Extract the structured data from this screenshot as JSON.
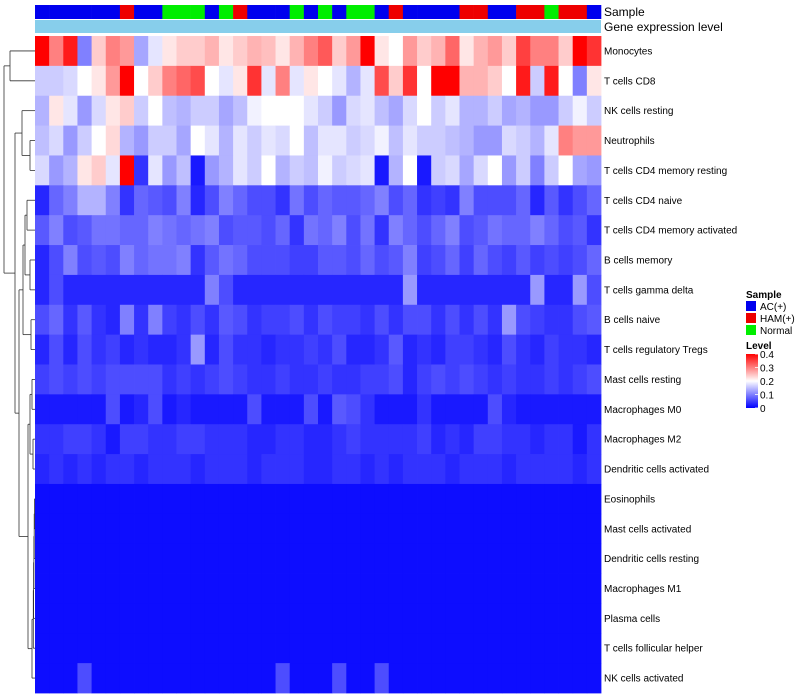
{
  "chart_data": {
    "type": "heatmap",
    "annotation_labels": [
      "Sample",
      "Gene expression level"
    ],
    "rows": [
      "Monocytes",
      "T cells CD8",
      "NK cells resting",
      "Neutrophils",
      "T cells CD4 memory resting",
      "T cells CD4 naive",
      "T cells CD4 memory activated",
      "B cells memory",
      "T cells gamma delta",
      "B cells naive",
      "T cells regulatory  Tregs",
      "Mast cells resting",
      "Macrophages M0",
      "Macrophages M2",
      "Dendritic cells activated",
      "Eosinophils",
      "Mast cells activated",
      "Dendritic cells resting",
      "Macrophages M1",
      "Plasma cells",
      "T cells follicular helper",
      "NK cells activated"
    ],
    "samples": [
      "AC(+)",
      "AC(+)",
      "AC(+)",
      "AC(+)",
      "AC(+)",
      "AC(+)",
      "HAM(+)",
      "AC(+)",
      "AC(+)",
      "Normal",
      "Normal",
      "Normal",
      "AC(+)",
      "Normal",
      "HAM(+)",
      "AC(+)",
      "AC(+)",
      "AC(+)",
      "Normal",
      "AC(+)",
      "Normal",
      "AC(+)",
      "Normal",
      "Normal",
      "AC(+)",
      "HAM(+)",
      "AC(+)",
      "AC(+)",
      "AC(+)",
      "AC(+)",
      "HAM(+)",
      "HAM(+)",
      "AC(+)",
      "AC(+)",
      "HAM(+)",
      "HAM(+)",
      "Normal",
      "HAM(+)",
      "HAM(+)",
      "AC(+)"
    ],
    "values": [
      [
        0.42,
        0.3,
        0.38,
        0.1,
        0.24,
        0.3,
        0.28,
        0.13,
        0.18,
        0.22,
        0.24,
        0.24,
        0.26,
        0.22,
        0.24,
        0.26,
        0.25,
        0.22,
        0.26,
        0.3,
        0.33,
        0.24,
        0.28,
        0.4,
        0.22,
        0.2,
        0.28,
        0.24,
        0.26,
        0.32,
        0.22,
        0.26,
        0.28,
        0.24,
        0.35,
        0.3,
        0.3,
        0.24,
        0.4,
        0.36
      ],
      [
        0.16,
        0.16,
        0.17,
        0.2,
        0.22,
        0.28,
        0.4,
        0.2,
        0.24,
        0.3,
        0.32,
        0.34,
        0.2,
        0.18,
        0.22,
        0.36,
        0.18,
        0.3,
        0.18,
        0.22,
        0.2,
        0.18,
        0.14,
        0.18,
        0.34,
        0.24,
        0.36,
        0.2,
        0.4,
        0.4,
        0.26,
        0.26,
        0.24,
        0.2,
        0.38,
        0.16,
        0.38,
        0.2,
        0.1,
        0.22
      ],
      [
        0.14,
        0.22,
        0.18,
        0.12,
        0.17,
        0.22,
        0.24,
        0.16,
        0.2,
        0.15,
        0.14,
        0.16,
        0.16,
        0.13,
        0.15,
        0.19,
        0.2,
        0.2,
        0.2,
        0.18,
        0.16,
        0.12,
        0.17,
        0.18,
        0.15,
        0.13,
        0.17,
        0.2,
        0.16,
        0.18,
        0.14,
        0.14,
        0.16,
        0.13,
        0.14,
        0.12,
        0.12,
        0.16,
        0.19,
        0.16
      ],
      [
        0.15,
        0.17,
        0.12,
        0.16,
        0.2,
        0.23,
        0.14,
        0.12,
        0.16,
        0.16,
        0.13,
        0.2,
        0.18,
        0.14,
        0.18,
        0.16,
        0.18,
        0.17,
        0.2,
        0.15,
        0.18,
        0.18,
        0.16,
        0.17,
        0.19,
        0.15,
        0.18,
        0.16,
        0.16,
        0.15,
        0.14,
        0.12,
        0.12,
        0.17,
        0.16,
        0.14,
        0.18,
        0.3,
        0.28,
        0.28
      ],
      [
        0.17,
        0.12,
        0.14,
        0.22,
        0.24,
        0.18,
        0.4,
        0.04,
        0.18,
        0.12,
        0.15,
        0.02,
        0.12,
        0.14,
        0.18,
        0.16,
        0.2,
        0.14,
        0.16,
        0.15,
        0.19,
        0.16,
        0.17,
        0.18,
        0.02,
        0.14,
        0.2,
        0.02,
        0.16,
        0.17,
        0.13,
        0.17,
        0.2,
        0.12,
        0.16,
        0.1,
        0.16,
        0.2,
        0.13,
        0.12
      ],
      [
        0.03,
        0.08,
        0.1,
        0.14,
        0.14,
        0.1,
        0.04,
        0.08,
        0.07,
        0.06,
        0.1,
        0.03,
        0.06,
        0.1,
        0.08,
        0.06,
        0.06,
        0.04,
        0.09,
        0.06,
        0.08,
        0.07,
        0.07,
        0.08,
        0.1,
        0.06,
        0.08,
        0.04,
        0.05,
        0.04,
        0.1,
        0.06,
        0.06,
        0.06,
        0.08,
        0.03,
        0.07,
        0.04,
        0.06,
        0.08
      ],
      [
        0.07,
        0.1,
        0.06,
        0.07,
        0.09,
        0.09,
        0.08,
        0.08,
        0.1,
        0.09,
        0.08,
        0.09,
        0.1,
        0.06,
        0.07,
        0.07,
        0.06,
        0.08,
        0.04,
        0.09,
        0.08,
        0.1,
        0.06,
        0.09,
        0.04,
        0.1,
        0.08,
        0.06,
        0.08,
        0.1,
        0.06,
        0.07,
        0.09,
        0.08,
        0.08,
        0.1,
        0.08,
        0.06,
        0.07,
        0.04
      ],
      [
        0.03,
        0.06,
        0.1,
        0.06,
        0.07,
        0.06,
        0.1,
        0.08,
        0.09,
        0.09,
        0.1,
        0.04,
        0.07,
        0.09,
        0.08,
        0.06,
        0.06,
        0.06,
        0.05,
        0.05,
        0.07,
        0.07,
        0.06,
        0.08,
        0.06,
        0.07,
        0.1,
        0.05,
        0.06,
        0.08,
        0.05,
        0.08,
        0.06,
        0.05,
        0.07,
        0.05,
        0.06,
        0.05,
        0.06,
        0.08
      ],
      [
        0.03,
        0.06,
        0.03,
        0.03,
        0.03,
        0.03,
        0.03,
        0.03,
        0.03,
        0.03,
        0.03,
        0.03,
        0.1,
        0.06,
        0.03,
        0.03,
        0.03,
        0.03,
        0.03,
        0.03,
        0.03,
        0.03,
        0.03,
        0.03,
        0.03,
        0.03,
        0.12,
        0.03,
        0.03,
        0.03,
        0.03,
        0.03,
        0.03,
        0.03,
        0.03,
        0.12,
        0.03,
        0.03,
        0.12,
        0.06
      ],
      [
        0.06,
        0.08,
        0.04,
        0.07,
        0.04,
        0.03,
        0.1,
        0.04,
        0.1,
        0.05,
        0.04,
        0.06,
        0.04,
        0.07,
        0.06,
        0.04,
        0.05,
        0.05,
        0.06,
        0.04,
        0.06,
        0.05,
        0.05,
        0.04,
        0.06,
        0.04,
        0.06,
        0.06,
        0.04,
        0.06,
        0.04,
        0.06,
        0.04,
        0.12,
        0.06,
        0.05,
        0.04,
        0.04,
        0.06,
        0.07
      ],
      [
        0.03,
        0.06,
        0.03,
        0.06,
        0.04,
        0.05,
        0.03,
        0.04,
        0.03,
        0.03,
        0.04,
        0.12,
        0.03,
        0.06,
        0.04,
        0.04,
        0.03,
        0.04,
        0.04,
        0.05,
        0.04,
        0.06,
        0.03,
        0.03,
        0.04,
        0.07,
        0.03,
        0.04,
        0.03,
        0.05,
        0.05,
        0.04,
        0.03,
        0.06,
        0.04,
        0.03,
        0.05,
        0.04,
        0.04,
        0.03
      ],
      [
        0.05,
        0.06,
        0.05,
        0.06,
        0.05,
        0.06,
        0.06,
        0.06,
        0.06,
        0.04,
        0.05,
        0.04,
        0.05,
        0.06,
        0.05,
        0.04,
        0.04,
        0.05,
        0.04,
        0.04,
        0.05,
        0.04,
        0.04,
        0.05,
        0.05,
        0.06,
        0.03,
        0.05,
        0.06,
        0.05,
        0.06,
        0.05,
        0.04,
        0.05,
        0.04,
        0.04,
        0.05,
        0.04,
        0.05,
        0.06
      ],
      [
        0.02,
        0.02,
        0.02,
        0.02,
        0.02,
        0.06,
        0.02,
        0.03,
        0.06,
        0.02,
        0.03,
        0.02,
        0.02,
        0.02,
        0.02,
        0.06,
        0.02,
        0.02,
        0.02,
        0.06,
        0.02,
        0.07,
        0.06,
        0.04,
        0.02,
        0.02,
        0.02,
        0.04,
        0.02,
        0.02,
        0.02,
        0.02,
        0.06,
        0.03,
        0.02,
        0.02,
        0.02,
        0.02,
        0.02,
        0.02
      ],
      [
        0.04,
        0.04,
        0.05,
        0.05,
        0.04,
        0.02,
        0.05,
        0.05,
        0.04,
        0.04,
        0.05,
        0.05,
        0.04,
        0.04,
        0.04,
        0.03,
        0.03,
        0.04,
        0.04,
        0.03,
        0.03,
        0.04,
        0.05,
        0.04,
        0.04,
        0.04,
        0.04,
        0.05,
        0.03,
        0.04,
        0.03,
        0.05,
        0.05,
        0.04,
        0.04,
        0.03,
        0.04,
        0.04,
        0.02,
        0.04
      ],
      [
        0.03,
        0.04,
        0.03,
        0.04,
        0.03,
        0.04,
        0.04,
        0.03,
        0.04,
        0.04,
        0.04,
        0.03,
        0.04,
        0.04,
        0.04,
        0.03,
        0.04,
        0.04,
        0.04,
        0.03,
        0.03,
        0.04,
        0.04,
        0.03,
        0.04,
        0.03,
        0.04,
        0.04,
        0.04,
        0.03,
        0.04,
        0.04,
        0.04,
        0.03,
        0.04,
        0.04,
        0.04,
        0.04,
        0.03,
        0.04
      ],
      [
        0.01,
        0.01,
        0.01,
        0.01,
        0.01,
        0.01,
        0.01,
        0.01,
        0.01,
        0.01,
        0.01,
        0.01,
        0.01,
        0.01,
        0.01,
        0.01,
        0.01,
        0.01,
        0.01,
        0.01,
        0.01,
        0.01,
        0.01,
        0.01,
        0.01,
        0.01,
        0.01,
        0.01,
        0.01,
        0.01,
        0.01,
        0.01,
        0.01,
        0.01,
        0.01,
        0.01,
        0.01,
        0.01,
        0.01,
        0.01
      ],
      [
        0.01,
        0.01,
        0.01,
        0.01,
        0.01,
        0.01,
        0.01,
        0.01,
        0.01,
        0.01,
        0.01,
        0.01,
        0.01,
        0.01,
        0.01,
        0.01,
        0.01,
        0.01,
        0.01,
        0.01,
        0.01,
        0.01,
        0.01,
        0.01,
        0.01,
        0.01,
        0.01,
        0.01,
        0.01,
        0.01,
        0.01,
        0.01,
        0.01,
        0.01,
        0.01,
        0.01,
        0.01,
        0.01,
        0.01,
        0.01
      ],
      [
        0.01,
        0.01,
        0.01,
        0.01,
        0.01,
        0.01,
        0.01,
        0.01,
        0.01,
        0.01,
        0.01,
        0.01,
        0.01,
        0.01,
        0.01,
        0.01,
        0.01,
        0.01,
        0.01,
        0.01,
        0.01,
        0.01,
        0.01,
        0.01,
        0.01,
        0.01,
        0.01,
        0.01,
        0.01,
        0.01,
        0.01,
        0.01,
        0.01,
        0.01,
        0.01,
        0.01,
        0.01,
        0.01,
        0.01,
        0.01
      ],
      [
        0.01,
        0.01,
        0.01,
        0.01,
        0.01,
        0.01,
        0.01,
        0.01,
        0.01,
        0.01,
        0.01,
        0.01,
        0.01,
        0.01,
        0.01,
        0.01,
        0.01,
        0.01,
        0.01,
        0.01,
        0.01,
        0.01,
        0.01,
        0.01,
        0.01,
        0.01,
        0.01,
        0.01,
        0.01,
        0.01,
        0.01,
        0.01,
        0.01,
        0.01,
        0.01,
        0.01,
        0.01,
        0.01,
        0.01,
        0.01
      ],
      [
        0.01,
        0.01,
        0.01,
        0.01,
        0.01,
        0.01,
        0.01,
        0.01,
        0.01,
        0.01,
        0.01,
        0.01,
        0.01,
        0.01,
        0.01,
        0.01,
        0.01,
        0.01,
        0.01,
        0.01,
        0.01,
        0.01,
        0.01,
        0.01,
        0.01,
        0.01,
        0.01,
        0.01,
        0.01,
        0.01,
        0.01,
        0.01,
        0.01,
        0.01,
        0.01,
        0.01,
        0.01,
        0.01,
        0.01,
        0.01
      ],
      [
        0.01,
        0.01,
        0.01,
        0.01,
        0.01,
        0.01,
        0.01,
        0.01,
        0.01,
        0.01,
        0.01,
        0.01,
        0.01,
        0.01,
        0.01,
        0.01,
        0.01,
        0.01,
        0.01,
        0.01,
        0.01,
        0.01,
        0.01,
        0.01,
        0.01,
        0.01,
        0.01,
        0.01,
        0.01,
        0.01,
        0.01,
        0.01,
        0.01,
        0.01,
        0.01,
        0.01,
        0.01,
        0.01,
        0.01,
        0.01
      ],
      [
        0.01,
        0.01,
        0.01,
        0.06,
        0.01,
        0.01,
        0.01,
        0.01,
        0.01,
        0.01,
        0.01,
        0.01,
        0.01,
        0.01,
        0.01,
        0.01,
        0.01,
        0.06,
        0.01,
        0.01,
        0.01,
        0.06,
        0.01,
        0.01,
        0.06,
        0.01,
        0.01,
        0.01,
        0.01,
        0.01,
        0.01,
        0.01,
        0.01,
        0.01,
        0.01,
        0.01,
        0.01,
        0.01,
        0.01,
        0.01
      ]
    ],
    "legend": {
      "sample_title": "Sample",
      "sample_items": [
        {
          "label": "AC(+)",
          "color": "#0000ee"
        },
        {
          "label": "HAM(+)",
          "color": "#ee0000"
        },
        {
          "label": "Normal",
          "color": "#00ee00"
        }
      ],
      "level_title": "Level",
      "level_ticks": [
        "0.4",
        "0.3",
        "0.2",
        "0.1",
        "0"
      ],
      "level_range": [
        0,
        0.4
      ]
    },
    "colors": {
      "low": "#0000ff",
      "mid": "#ffffff",
      "high": "#ff0000",
      "expression_bar": "#87ceeb"
    }
  }
}
